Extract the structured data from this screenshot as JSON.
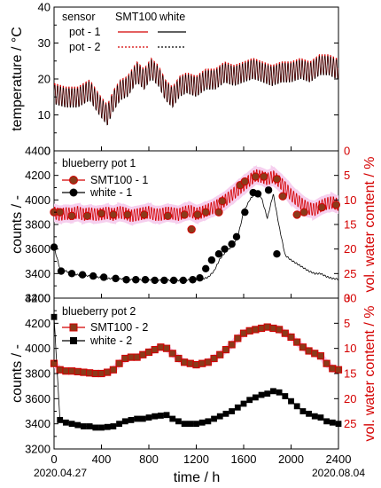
{
  "colors": {
    "red": "#d40000",
    "brown": "#8b3a1a",
    "black": "#000000",
    "band": "#f6cfee"
  },
  "chart_data": [
    {
      "type": "line",
      "panel": "temperature",
      "ylabel": "temperature / °C",
      "ylim": [
        0,
        40
      ],
      "yticks": [
        "0",
        "10",
        "20",
        "30",
        "40"
      ],
      "legend": {
        "header": "sensor",
        "col1": "SMT100",
        "col2": "white",
        "rows": [
          "pot - 1",
          "pot - 2"
        ]
      },
      "series": [
        {
          "name": "SMT100 pot - 1",
          "x": [
            0,
            100,
            200,
            300,
            380,
            450,
            500,
            560,
            620,
            700,
            760,
            820,
            880,
            940,
            1000,
            1060,
            1120,
            1200,
            1280,
            1360,
            1440,
            1520,
            1600,
            1680,
            1760,
            1840,
            1920,
            2000,
            2080,
            2160,
            2240,
            2320,
            2380
          ],
          "y": [
            16,
            15,
            15,
            17,
            13,
            10,
            14,
            17,
            18,
            22,
            20,
            23,
            21,
            17,
            15,
            18,
            19,
            18,
            20,
            20,
            22,
            21,
            22,
            23,
            22,
            21,
            22,
            22,
            23,
            22,
            24,
            24,
            23
          ]
        },
        {
          "name": "white pot - 1",
          "x": [
            0,
            100,
            200,
            300,
            380,
            450,
            500,
            560,
            620,
            700,
            760,
            820,
            880,
            940,
            1000,
            1060,
            1120,
            1200,
            1280,
            1360,
            1440,
            1520,
            1600,
            1680,
            1760,
            1840,
            1920,
            2000,
            2080,
            2160,
            2240,
            2320,
            2380
          ],
          "y": [
            16,
            15,
            15,
            17,
            13,
            10,
            14,
            17,
            18,
            22,
            20,
            23,
            21,
            17,
            15,
            18,
            19,
            18,
            20,
            20,
            22,
            21,
            22,
            23,
            22,
            21,
            22,
            22,
            23,
            22,
            24,
            24,
            23
          ]
        }
      ]
    },
    {
      "type": "line",
      "panel": "pot1",
      "title": "blueberry pot 1",
      "ylabel": "counts / -",
      "y2label": "vol. water content / %",
      "ylim": [
        3200,
        4400
      ],
      "y2lim": [
        30,
        0
      ],
      "yticks": [
        "3200",
        "3400",
        "3600",
        "3800",
        "4000",
        "4200",
        "4400"
      ],
      "y2ticks": [
        "30",
        "25",
        "20",
        "15",
        "10",
        "5",
        "0"
      ],
      "legend": [
        "SMT100 - 1",
        "white - 1"
      ],
      "series": [
        {
          "name": "SMT100 - 1",
          "x": [
            0,
            50,
            100,
            150,
            200,
            250,
            300,
            350,
            400,
            450,
            500,
            550,
            600,
            650,
            700,
            750,
            800,
            850,
            900,
            950,
            1000,
            1050,
            1100,
            1150,
            1200,
            1250,
            1300,
            1350,
            1400,
            1450,
            1500,
            1550,
            1600,
            1650,
            1700,
            1750,
            1800,
            1850,
            1900,
            1950,
            2000,
            2050,
            2100,
            2150,
            2200,
            2250,
            2300,
            2350,
            2400
          ],
          "y": [
            3895,
            3880,
            3890,
            3885,
            3900,
            3880,
            3890,
            3880,
            3885,
            3895,
            3880,
            3900,
            3890,
            3870,
            3880,
            3890,
            3900,
            3880,
            3880,
            3895,
            3890,
            3880,
            3900,
            3910,
            3885,
            3900,
            3920,
            3940,
            3970,
            4000,
            4040,
            4080,
            4120,
            4160,
            4200,
            4190,
            4170,
            4190,
            4150,
            4100,
            4040,
            4000,
            3960,
            3930,
            3920,
            3950,
            3970,
            3980,
            3960
          ]
        },
        {
          "name": "white - 1",
          "x": [
            0,
            50,
            100,
            150,
            200,
            250,
            300,
            350,
            400,
            450,
            500,
            550,
            600,
            650,
            700,
            750,
            800,
            850,
            900,
            950,
            1000,
            1050,
            1100,
            1150,
            1200,
            1250,
            1300,
            1350,
            1400,
            1450,
            1500,
            1550,
            1600,
            1650,
            1700,
            1750,
            1800,
            1850,
            1900,
            1950,
            2000,
            2050,
            2100,
            2150,
            2200,
            2250,
            2300,
            2350,
            2400
          ],
          "y": [
            3615,
            3440,
            3420,
            3400,
            3390,
            3385,
            3380,
            3370,
            3370,
            3360,
            3360,
            3355,
            3360,
            3350,
            3350,
            3350,
            3350,
            3350,
            3345,
            3345,
            3345,
            3345,
            3345,
            3350,
            3350,
            3355,
            3370,
            3420,
            3520,
            3580,
            3620,
            3700,
            3900,
            4000,
            4060,
            4020,
            3850,
            4050,
            3780,
            3550,
            3510,
            3480,
            3450,
            3420,
            3400,
            3400,
            3375,
            3360,
            3355
          ]
        }
      ],
      "markers_smt": [
        [
          0,
          3900
        ],
        [
          50,
          3900
        ],
        [
          150,
          3870
        ],
        [
          280,
          3870
        ],
        [
          400,
          3890
        ],
        [
          500,
          3880
        ],
        [
          620,
          3880
        ],
        [
          760,
          3880
        ],
        [
          960,
          3870
        ],
        [
          1100,
          3880
        ],
        [
          1160,
          3760
        ],
        [
          1210,
          3880
        ],
        [
          1280,
          3900
        ],
        [
          1390,
          3900
        ],
        [
          1420,
          3990
        ],
        [
          1570,
          4120
        ],
        [
          1610,
          4150
        ],
        [
          1700,
          4190
        ],
        [
          1770,
          4190
        ],
        [
          1880,
          4170
        ],
        [
          1930,
          4030
        ],
        [
          2050,
          3880
        ],
        [
          2110,
          3900
        ],
        [
          2260,
          3940
        ],
        [
          2380,
          3960
        ]
      ],
      "markers_white": [
        [
          0,
          3615
        ],
        [
          60,
          3420
        ],
        [
          150,
          3400
        ],
        [
          240,
          3390
        ],
        [
          330,
          3380
        ],
        [
          420,
          3370
        ],
        [
          520,
          3360
        ],
        [
          610,
          3350
        ],
        [
          690,
          3350
        ],
        [
          770,
          3350
        ],
        [
          850,
          3345
        ],
        [
          930,
          3345
        ],
        [
          1010,
          3345
        ],
        [
          1090,
          3345
        ],
        [
          1170,
          3350
        ],
        [
          1230,
          3365
        ],
        [
          1280,
          3440
        ],
        [
          1330,
          3510
        ],
        [
          1390,
          3560
        ],
        [
          1440,
          3600
        ],
        [
          1500,
          3640
        ],
        [
          1540,
          3700
        ],
        [
          1610,
          3900
        ],
        [
          1680,
          4060
        ],
        [
          1720,
          4050
        ],
        [
          1810,
          4080
        ],
        [
          1880,
          3560
        ]
      ]
    },
    {
      "type": "line",
      "panel": "pot2",
      "title": "blueberry pot 2",
      "ylabel": "counts / -",
      "y2label": "vol. water content / %",
      "ylim": [
        3200,
        4400
      ],
      "y2lim": [
        30,
        0
      ],
      "yticks": [
        "3200",
        "3400",
        "3600",
        "3800",
        "4000",
        "4200",
        "4400"
      ],
      "y2ticks": [
        "25",
        "20",
        "15",
        "10",
        "5",
        "0"
      ],
      "xlabel": "time / h",
      "xticks": [
        "0",
        "400",
        "800",
        "1200",
        "1600",
        "2000",
        "2400"
      ],
      "xlim": [
        0,
        2400
      ],
      "date_start": "2020.04.27",
      "date_end": "2020.08.04",
      "legend": [
        "SMT100 - 2",
        "white - 2"
      ],
      "series": [
        {
          "name": "SMT100 - 2",
          "x": [
            0,
            50,
            100,
            150,
            200,
            250,
            300,
            350,
            400,
            450,
            500,
            550,
            600,
            650,
            700,
            750,
            800,
            850,
            900,
            950,
            1000,
            1050,
            1100,
            1150,
            1200,
            1250,
            1300,
            1350,
            1400,
            1450,
            1500,
            1550,
            1600,
            1650,
            1700,
            1750,
            1800,
            1850,
            1900,
            1950,
            2000,
            2050,
            2100,
            2150,
            2200,
            2250,
            2300,
            2350,
            2400
          ],
          "y": [
            3880,
            3830,
            3820,
            3820,
            3815,
            3810,
            3805,
            3800,
            3800,
            3810,
            3830,
            3880,
            3920,
            3930,
            3930,
            3950,
            3970,
            3990,
            4010,
            4000,
            3960,
            3920,
            3890,
            3880,
            3870,
            3880,
            3890,
            3920,
            3950,
            3990,
            4030,
            4080,
            4120,
            4140,
            4150,
            4160,
            4170,
            4160,
            4150,
            4120,
            4090,
            4050,
            4010,
            3980,
            3960,
            3940,
            3880,
            3840,
            3830
          ]
        },
        {
          "name": "white - 2",
          "x": [
            0,
            50,
            100,
            150,
            200,
            250,
            300,
            350,
            400,
            450,
            500,
            550,
            600,
            650,
            700,
            750,
            800,
            850,
            900,
            950,
            1000,
            1050,
            1100,
            1150,
            1200,
            1250,
            1300,
            1350,
            1400,
            1450,
            1500,
            1550,
            1600,
            1650,
            1700,
            1750,
            1800,
            1850,
            1900,
            1950,
            2000,
            2050,
            2100,
            2150,
            2200,
            2250,
            2300,
            2350,
            2400
          ],
          "y": [
            4250,
            3430,
            3410,
            3400,
            3390,
            3380,
            3380,
            3370,
            3370,
            3375,
            3380,
            3400,
            3420,
            3430,
            3440,
            3440,
            3450,
            3460,
            3465,
            3470,
            3440,
            3420,
            3400,
            3400,
            3400,
            3410,
            3420,
            3440,
            3460,
            3480,
            3500,
            3530,
            3560,
            3590,
            3610,
            3630,
            3640,
            3660,
            3650,
            3620,
            3580,
            3540,
            3500,
            3480,
            3460,
            3450,
            3420,
            3410,
            3400
          ]
        }
      ]
    }
  ]
}
